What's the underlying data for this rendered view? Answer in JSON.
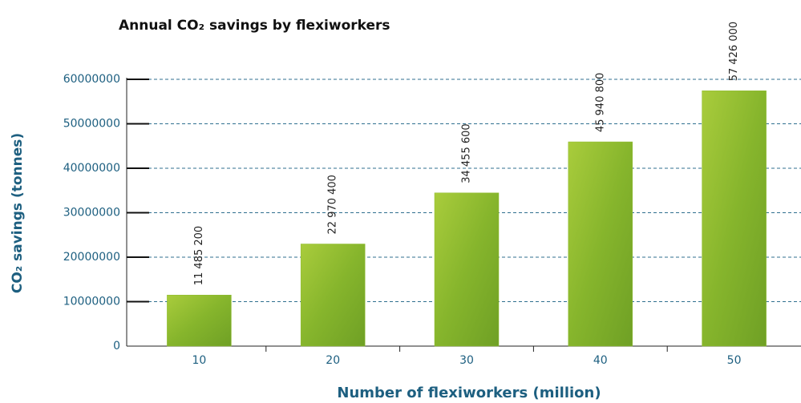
{
  "chart_data": {
    "type": "bar",
    "title": "Annual CO₂ savings by flexiworkers",
    "x_label": "Number of flexiworkers (million)",
    "y_label": "CO₂ savings (tonnes)",
    "categories": [
      "10",
      "20",
      "30",
      "40",
      "50"
    ],
    "values": [
      11485200,
      22970400,
      34455600,
      45940800,
      57426000
    ],
    "value_labels": [
      "11 485 200",
      "22 970 400",
      "34 455 600",
      "45 940 800",
      "57 426 000"
    ],
    "color": "#8dbb2e",
    "ylim": [
      0,
      60000000
    ],
    "yticks": [
      0,
      10000000,
      20000000,
      30000000,
      40000000,
      50000000,
      60000000
    ],
    "grid": true
  }
}
